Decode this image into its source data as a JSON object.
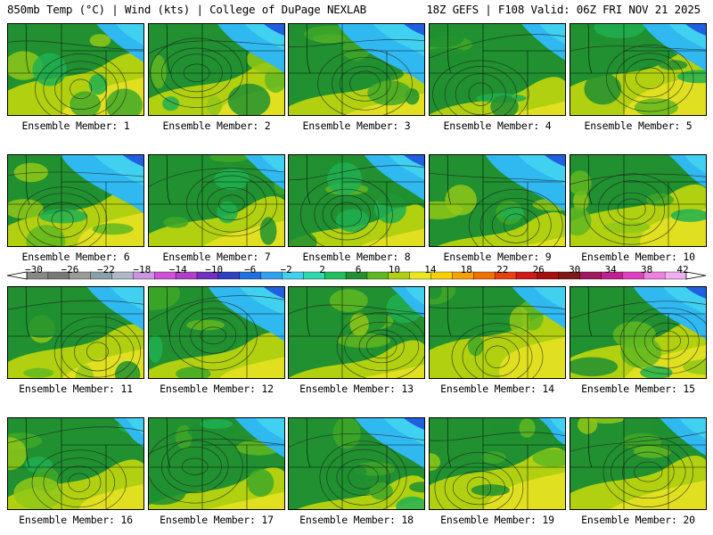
{
  "header": {
    "left": "850mb Temp (°C) | Wind (kts) | College of DuPage NEXLAB",
    "right": "18Z GEFS | F108 Valid: 06Z FRI NOV 21 2025"
  },
  "members": [
    {
      "label": "Ensemble Member: 1"
    },
    {
      "label": "Ensemble Member: 2"
    },
    {
      "label": "Ensemble Member: 3"
    },
    {
      "label": "Ensemble Member: 4"
    },
    {
      "label": "Ensemble Member: 5"
    },
    {
      "label": "Ensemble Member: 6"
    },
    {
      "label": "Ensemble Member: 7"
    },
    {
      "label": "Ensemble Member: 8"
    },
    {
      "label": "Ensemble Member: 9"
    },
    {
      "label": "Ensemble Member: 10"
    },
    {
      "label": "Ensemble Member: 11"
    },
    {
      "label": "Ensemble Member: 12"
    },
    {
      "label": "Ensemble Member: 13"
    },
    {
      "label": "Ensemble Member: 14"
    },
    {
      "label": "Ensemble Member: 15"
    },
    {
      "label": "Ensemble Member: 16"
    },
    {
      "label": "Ensemble Member: 17"
    },
    {
      "label": "Ensemble Member: 18"
    },
    {
      "label": "Ensemble Member: 19"
    },
    {
      "label": "Ensemble Member: 20"
    }
  ],
  "colorbar": {
    "ticks": [
      "−30",
      "−26",
      "−22",
      "−18",
      "−14",
      "−10",
      "−6",
      "−2",
      "2",
      "6",
      "10",
      "14",
      "18",
      "22",
      "26",
      "30",
      "34",
      "38",
      "42"
    ],
    "colors": [
      "#888888",
      "#787878",
      "#9a9a9a",
      "#8aa0a8",
      "#b0b8c8",
      "#c896e0",
      "#d050d8",
      "#b040c8",
      "#7030c0",
      "#3040c0",
      "#2070e0",
      "#30a0f0",
      "#40d0f0",
      "#30d8b0",
      "#20c060",
      "#209030",
      "#60b820",
      "#b0d010",
      "#e8e820",
      "#f8d000",
      "#f8a000",
      "#f07000",
      "#e84010",
      "#d01818",
      "#a81010",
      "#801818",
      "#a01860",
      "#c02090",
      "#e040c0",
      "#f080e0",
      "#f0b0f0"
    ]
  }
}
